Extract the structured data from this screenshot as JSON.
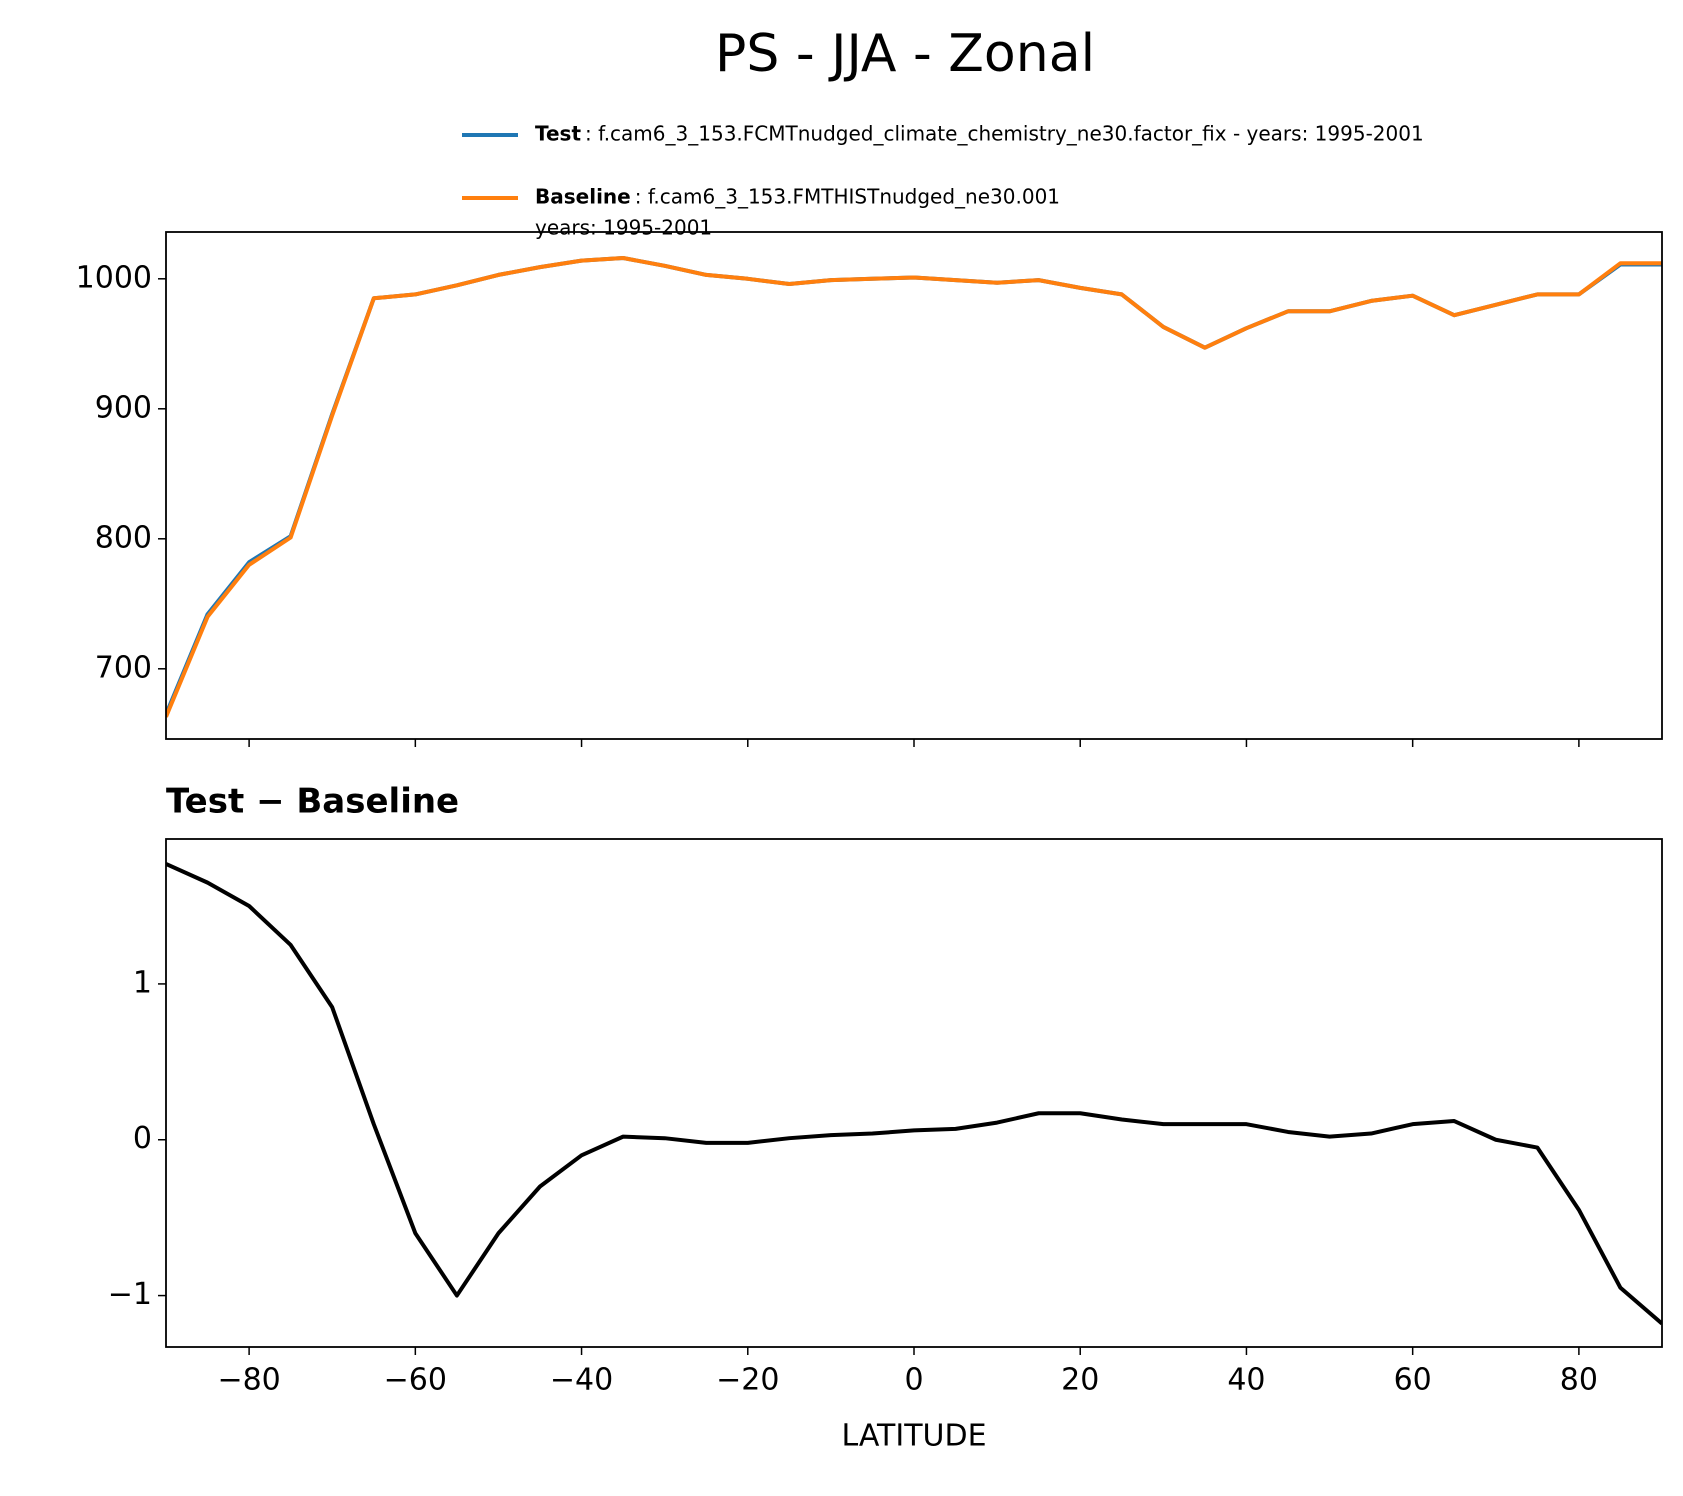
{
  "chart_data": [
    {
      "type": "line",
      "title": "PS - JJA - Zonal",
      "x": [
        -90,
        -85,
        -80,
        -75,
        -70,
        -65,
        -60,
        -55,
        -50,
        -45,
        -40,
        -35,
        -30,
        -25,
        -20,
        -15,
        -10,
        -5,
        0,
        5,
        10,
        15,
        20,
        25,
        30,
        35,
        40,
        45,
        50,
        55,
        60,
        65,
        70,
        75,
        80,
        85,
        90
      ],
      "series": [
        {
          "name": "Test",
          "label": ": f.cam6_3_153.FCMTnudged_climate_chemistry_ne30.factor_fix - years: 1995-2001",
          "color": "#1f77b4",
          "values": [
            665,
            742,
            782,
            802,
            896,
            985,
            988,
            995,
            1003,
            1009,
            1014,
            1016,
            1010,
            1003,
            1000,
            996,
            999,
            1000,
            1001,
            999,
            997,
            999,
            993,
            988,
            963,
            947,
            962,
            975,
            975,
            983,
            987,
            972,
            980,
            988,
            988,
            1011,
            1011
          ]
        },
        {
          "name": "Baseline",
          "label": [
            ": f.cam6_3_153.FMTHISTnudged_ne30.001",
            "years: 1995-2001"
          ],
          "color": "#ff7f0e",
          "values": [
            663,
            740,
            780,
            801,
            895,
            985,
            988,
            995,
            1003,
            1009,
            1014,
            1016,
            1010,
            1003,
            1000,
            996,
            999,
            1000,
            1001,
            999,
            997,
            999,
            993,
            988,
            963,
            947,
            962,
            975,
            975,
            983,
            987,
            972,
            980,
            988,
            988,
            1012,
            1012
          ]
        }
      ],
      "xlim": [
        -90,
        90
      ],
      "xticks": [
        -80,
        -60,
        -40,
        -20,
        0,
        20,
        40,
        60,
        80
      ],
      "ylim": [
        646,
        1036
      ],
      "yticks": [
        700,
        800,
        900,
        1000
      ]
    },
    {
      "type": "line",
      "title": "Test − Baseline",
      "xlabel": "LATITUDE",
      "x": [
        -90,
        -85,
        -80,
        -75,
        -70,
        -65,
        -60,
        -55,
        -50,
        -45,
        -40,
        -35,
        -30,
        -25,
        -20,
        -15,
        -10,
        -5,
        0,
        5,
        10,
        15,
        20,
        25,
        30,
        35,
        40,
        45,
        50,
        55,
        60,
        65,
        70,
        75,
        80,
        85,
        90
      ],
      "values": [
        1.77,
        1.65,
        1.5,
        1.25,
        0.85,
        0.1,
        -0.6,
        -1.0,
        -0.6,
        -0.3,
        -0.1,
        0.02,
        0.01,
        -0.02,
        -0.02,
        0.01,
        0.03,
        0.04,
        0.06,
        0.07,
        0.11,
        0.17,
        0.17,
        0.13,
        0.1,
        0.1,
        0.1,
        0.05,
        0.02,
        0.04,
        0.1,
        0.12,
        0.0,
        -0.05,
        -0.45,
        -0.95,
        -1.18
      ],
      "color": "#000000",
      "xlim": [
        -90,
        90
      ],
      "xticks": [
        {
          "value": -80,
          "label": "−80"
        },
        {
          "value": -60,
          "label": "−60"
        },
        {
          "value": -40,
          "label": "−40"
        },
        {
          "value": -20,
          "label": "−20"
        },
        0,
        20,
        40,
        60,
        80
      ],
      "ylim": [
        -1.33,
        1.93
      ],
      "yticks": [
        {
          "value": -1,
          "label": "−1"
        },
        0,
        1
      ]
    }
  ]
}
